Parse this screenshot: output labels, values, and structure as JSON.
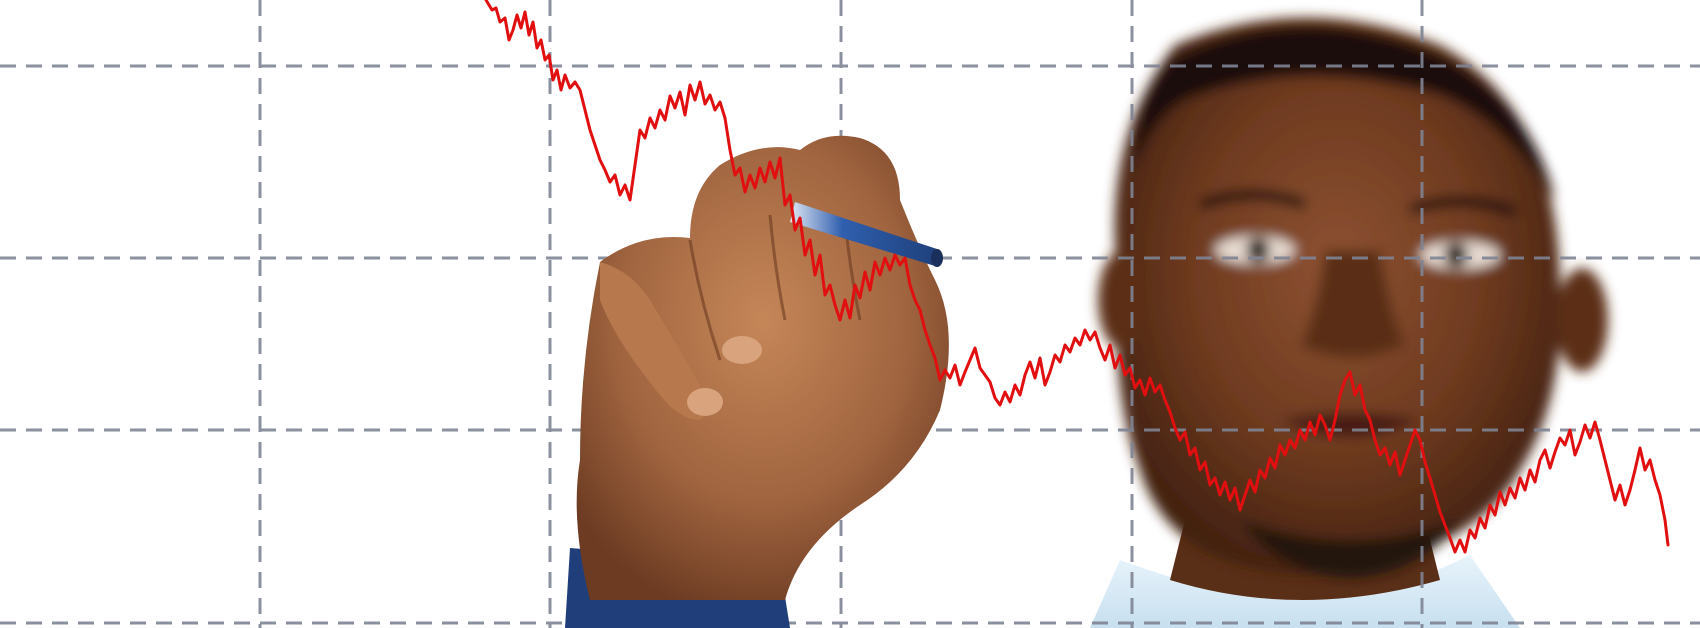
{
  "scene": {
    "background_color": "#ffffff",
    "gridline_color": "#7f8494",
    "trend_line_color": "#e10f10",
    "skin_tone": "#a0643f",
    "skin_shadow": "#6c3b22",
    "marker_color": "#2f5fae",
    "shirt_color": "#d9ecf7",
    "trend_direction": "declining"
  }
}
